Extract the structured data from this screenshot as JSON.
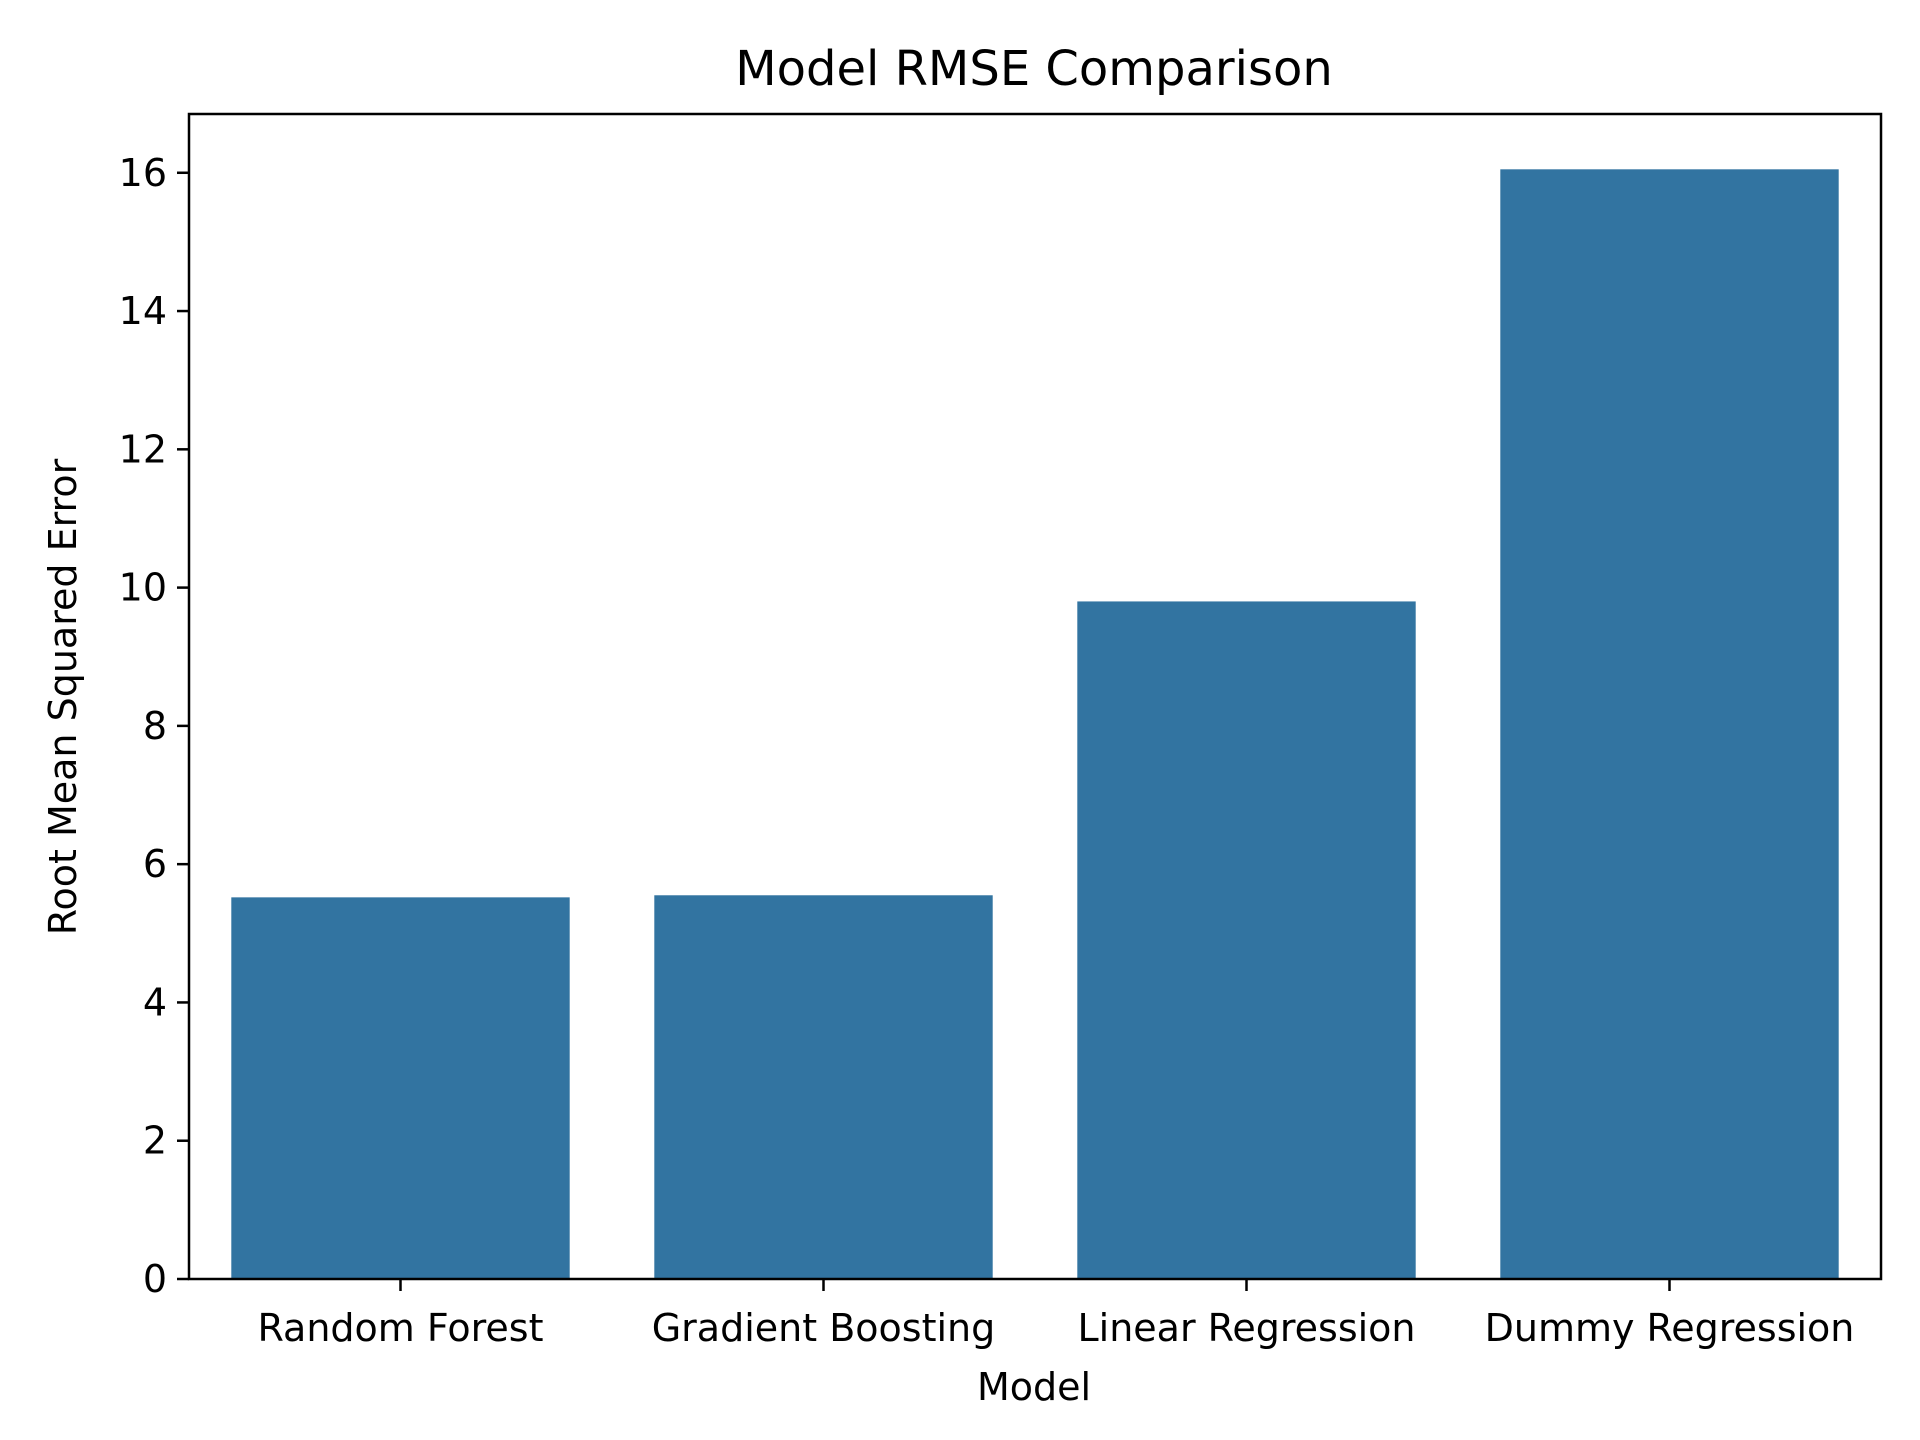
{
  "chart_data": {
    "type": "bar",
    "title": "Model RMSE Comparison",
    "xlabel": "Model",
    "ylabel": "Root Mean Squared Error",
    "categories": [
      "Random Forest",
      "Gradient Boosting",
      "Linear Regression",
      "Dummy Regression"
    ],
    "values": [
      5.52,
      5.55,
      9.8,
      16.05
    ],
    "ylim": [
      0,
      16.85
    ],
    "yticks": [
      "0",
      "2",
      "4",
      "6",
      "8",
      "10",
      "12",
      "14",
      "16"
    ],
    "grid": false,
    "legend": "none",
    "colors": {
      "bar": "#3274a1",
      "axis": "#000000",
      "background": "#ffffff"
    }
  }
}
